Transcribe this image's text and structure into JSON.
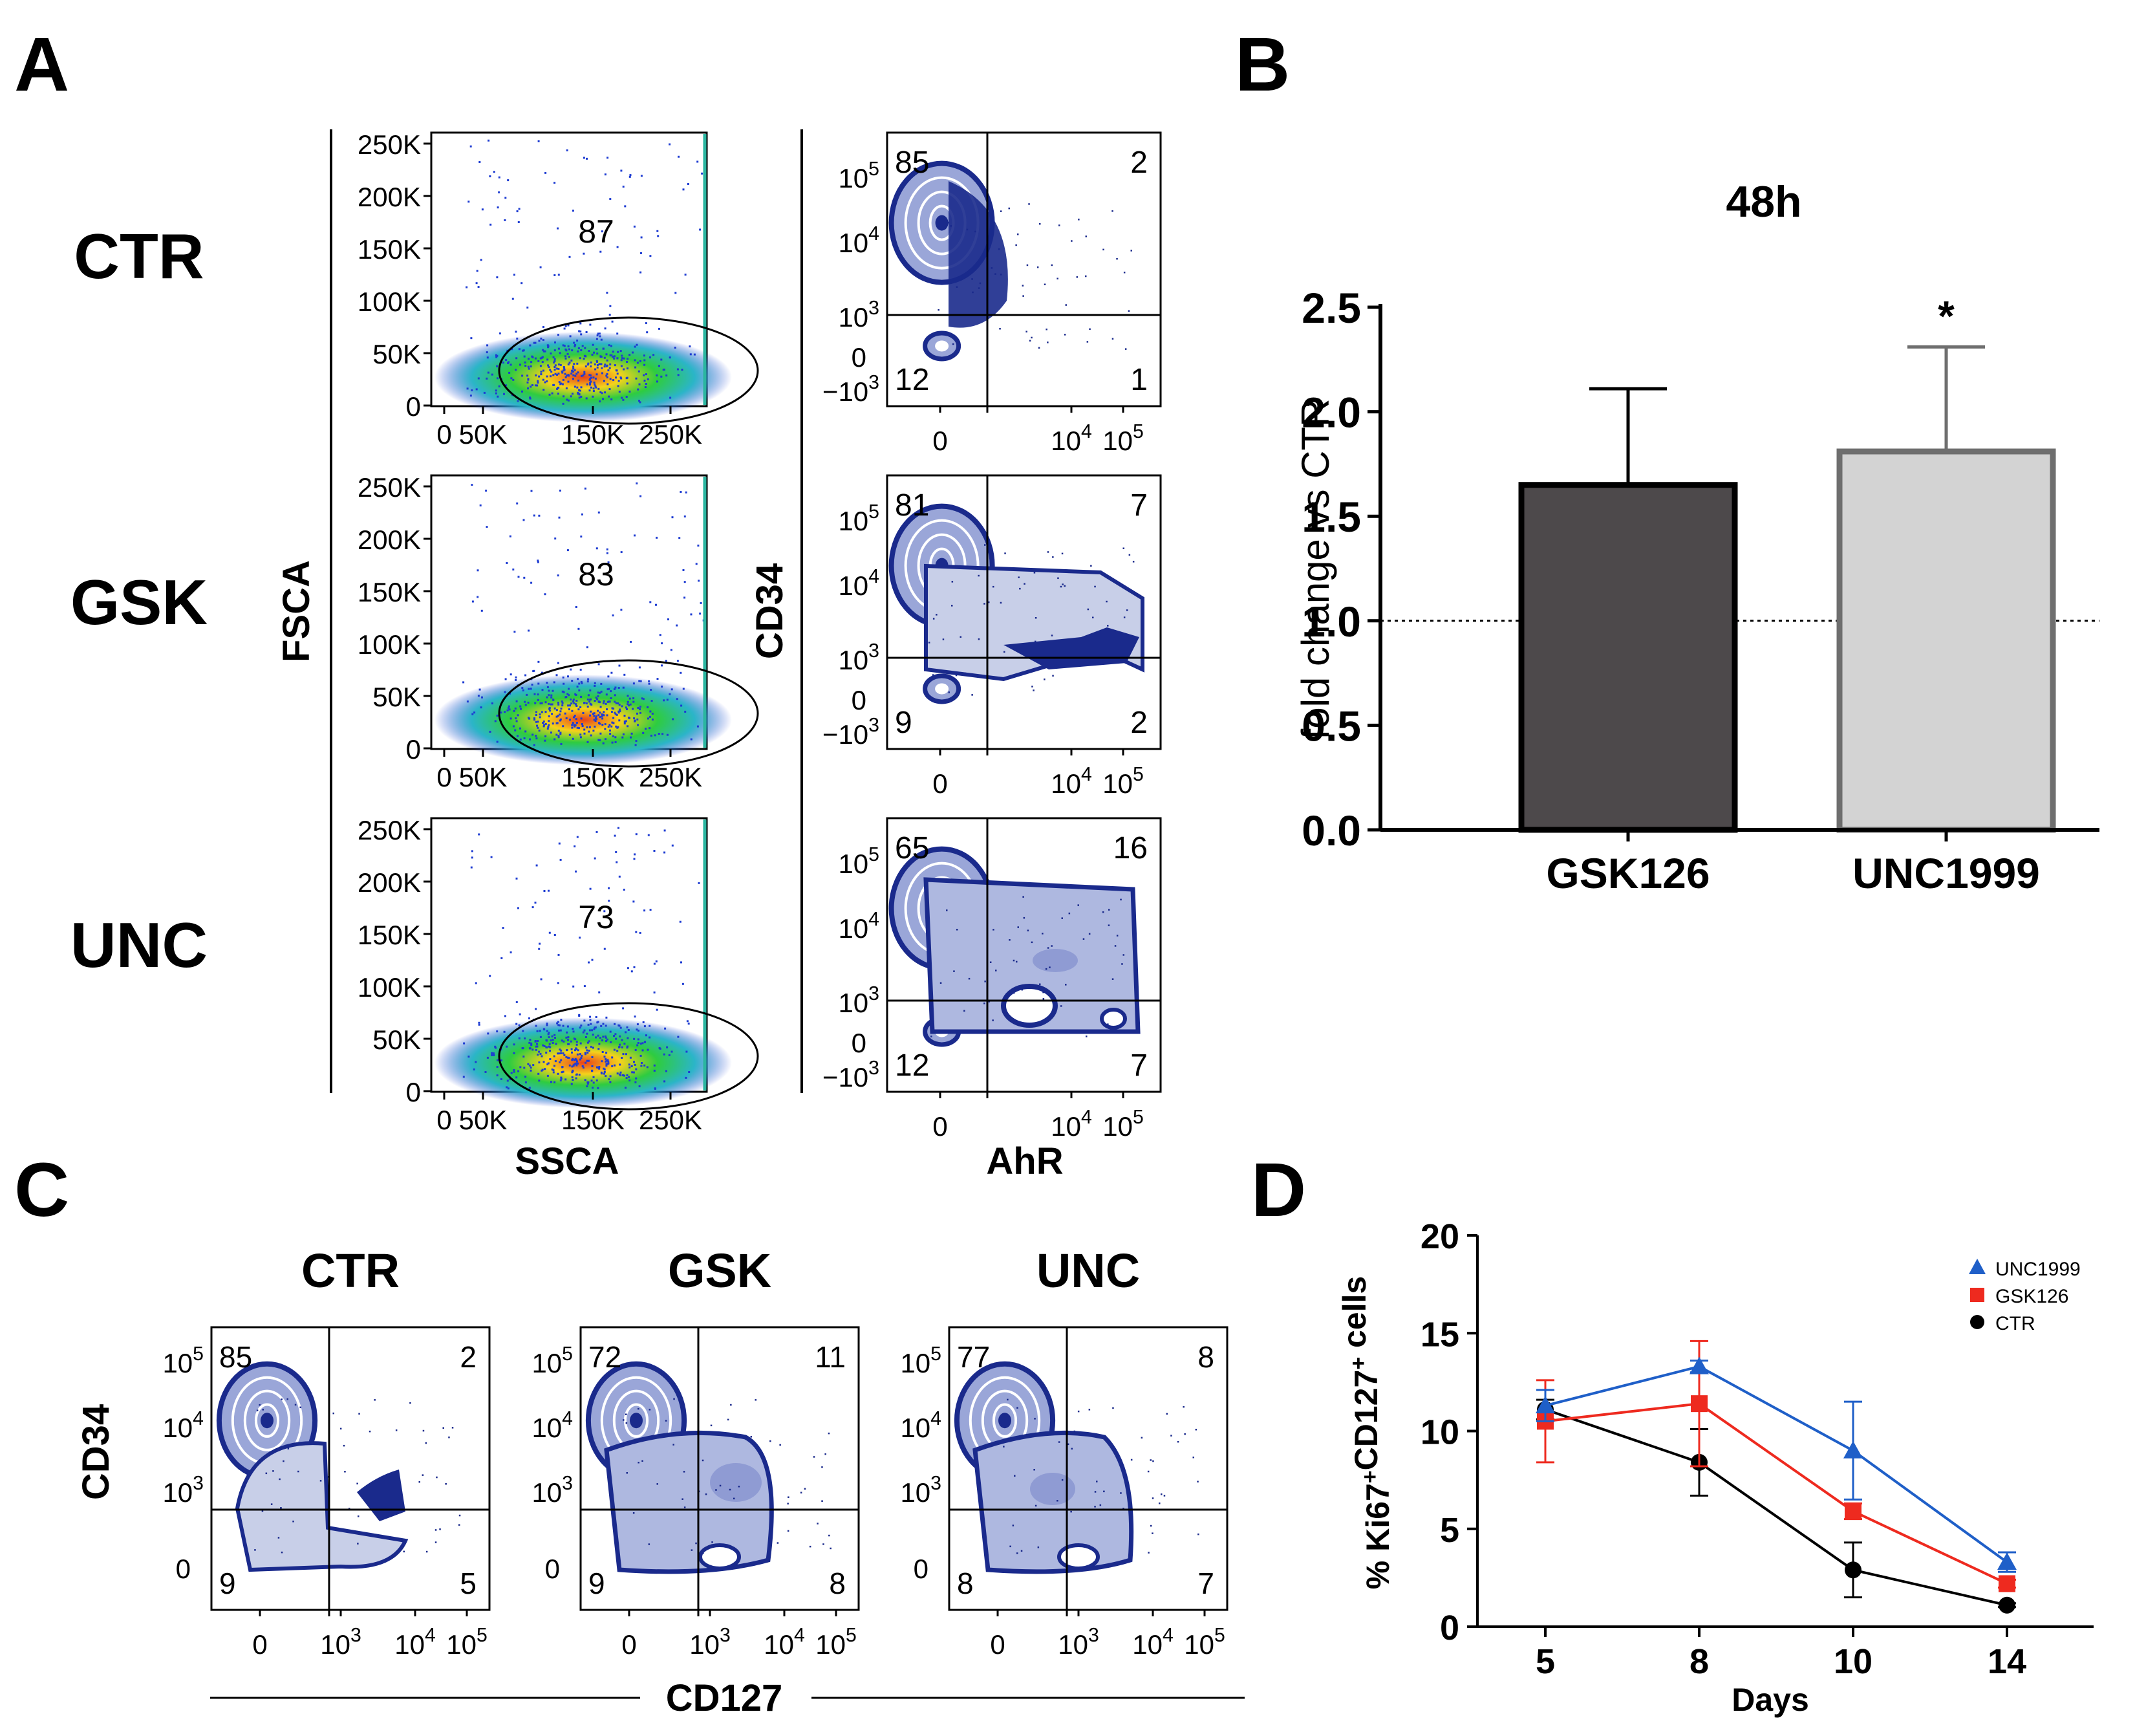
{
  "panels": {
    "a": "A",
    "b": "B",
    "c": "C",
    "d": "D"
  },
  "panel_a": {
    "row_labels": [
      "CTR",
      "GSK",
      "UNC"
    ],
    "scatter_xlabel": "SSCA",
    "scatter_ylabel": "FSCA",
    "scatter_yticks": [
      "250K",
      "200K",
      "150K",
      "100K",
      "50K",
      "0"
    ],
    "scatter_xticks": [
      "0",
      "50K",
      "150K",
      "250K"
    ],
    "scatter_gate_pcts": [
      "87",
      "83",
      "73"
    ],
    "quad_xlabel": "AhR",
    "quad_ylabel": "CD34",
    "quad_ytick_base": "10",
    "quad_ytick_exps": [
      "5",
      "4",
      "3"
    ],
    "quad_ytick_zero": "0",
    "quad_ytick_neg": "−10",
    "quad_ytick_neg_exp": "3",
    "quad_xticks": [
      "0",
      "10",
      "10"
    ],
    "quad_xtick_exps": [
      "4",
      "5"
    ],
    "quad_pcts": [
      {
        "ul": "85",
        "ur": "2",
        "ll": "12",
        "lr": "1"
      },
      {
        "ul": "81",
        "ur": "7",
        "ll": "9",
        "lr": "2"
      },
      {
        "ul": "65",
        "ur": "16",
        "ll": "12",
        "lr": "7"
      }
    ]
  },
  "chart_data": [
    {
      "type": "bar",
      "title": "48h",
      "ylabel": "fold change vs CTR",
      "xlabel": "",
      "categories": [
        "GSK126",
        "UNC1999"
      ],
      "values": [
        1.65,
        1.81
      ],
      "errors": [
        0.46,
        0.5
      ],
      "colors": [
        "#4d494b",
        "#d3d3d3"
      ],
      "edge_colors": [
        "#000000",
        "#6e6e6e"
      ],
      "ylim": [
        0,
        2.5
      ],
      "yticks": [
        "0.0",
        "0.5",
        "1.0",
        "1.5",
        "2.0",
        "2.5"
      ],
      "reference_line": 1.0,
      "annotation": "*"
    },
    {
      "type": "line",
      "xlabel": "Days",
      "ylabel": "% Ki67",
      "ylabel_sup1": "+",
      "ylabel_mid": "CD127",
      "ylabel_sup2": "+",
      "ylabel_end": " cells",
      "x": [
        5,
        8,
        10,
        14
      ],
      "xticks": [
        "5",
        "8",
        "10",
        "14"
      ],
      "yticks": [
        "0",
        "5",
        "10",
        "15",
        "20"
      ],
      "ylim": [
        0,
        20
      ],
      "legend_position": "top-right",
      "series": [
        {
          "name": "UNC1999",
          "color": "#1f5fc8",
          "marker": "triangle",
          "values": [
            11.3,
            13.3,
            9.0,
            3.3
          ],
          "errors": [
            0.8,
            0.3,
            2.5,
            0.5
          ]
        },
        {
          "name": "GSK126",
          "color": "#ee2a1f",
          "marker": "square",
          "values": [
            10.5,
            11.4,
            5.9,
            2.2
          ],
          "errors": [
            2.1,
            3.2,
            0.4,
            0.2
          ]
        },
        {
          "name": "CTR",
          "color": "#000000",
          "marker": "circle",
          "values": [
            11.1,
            8.4,
            2.9,
            1.1
          ],
          "errors": [
            0.5,
            1.7,
            1.4,
            0.1
          ]
        }
      ]
    }
  ],
  "panel_c": {
    "col_labels": [
      "CTR",
      "GSK",
      "UNC"
    ],
    "xlabel": "CD127",
    "ylabel": "CD34",
    "ytick_base": "10",
    "ytick_exps": [
      "5",
      "4",
      "3"
    ],
    "ytick_zero": "0",
    "xticks": [
      "0",
      "10",
      "10",
      "10"
    ],
    "xtick_exps": [
      "3",
      "4",
      "5"
    ],
    "quad_pcts": [
      {
        "ul": "85",
        "ur": "2",
        "ll": "9",
        "lr": "5"
      },
      {
        "ul": "72",
        "ur": "11",
        "ll": "9",
        "lr": "8"
      },
      {
        "ul": "77",
        "ur": "8",
        "ll": "8",
        "lr": "7"
      }
    ]
  },
  "colors": {
    "contour": "#1a2a8c",
    "density_fill": "#c8cfe8",
    "scatter_low": "#1e3cd2",
    "scatter_mid": "#2ecc40",
    "scatter_high": "#e8431a"
  }
}
